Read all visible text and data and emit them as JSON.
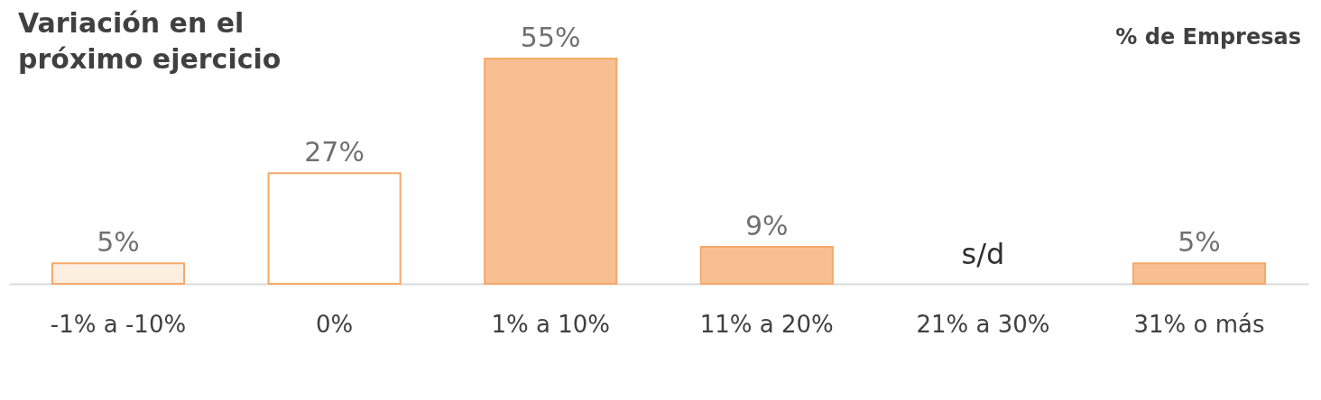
{
  "chart_data": {
    "type": "bar",
    "title": "Variación en el\npróximo ejercicio",
    "annotations": [
      "% de Empresas"
    ],
    "categories": [
      "-1% a -10%",
      "0%",
      "1% a 10%",
      "11% a 20%",
      "21% a 30%",
      "31% o más"
    ],
    "values": [
      5,
      27,
      55,
      9,
      null,
      5
    ],
    "value_labels": [
      "5%",
      "27%",
      "55%",
      "9%",
      "s/d",
      "5%"
    ],
    "colors": [
      "#fdeee2",
      "#ffffff",
      "#f8c092",
      "#f8c092",
      "#f8c092",
      "#f8c092"
    ]
  }
}
